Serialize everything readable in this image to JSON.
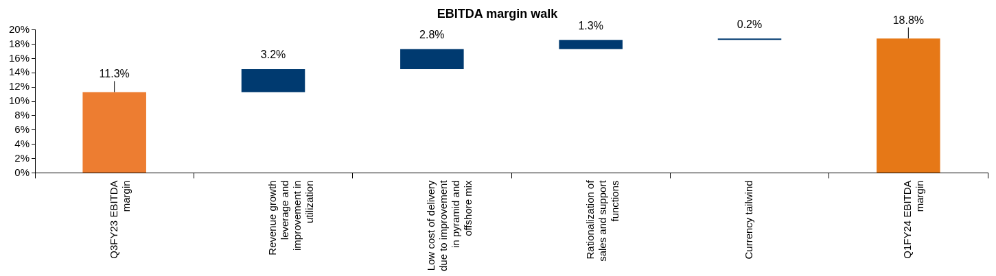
{
  "chart_data": {
    "type": "bar",
    "title": "EBITDA margin walk",
    "categories": [
      "Q3FY23 EBITDA margin",
      "Revenue growth leverage and improvement in utilization",
      "Low cost of delivery due to improvement in pyramid and offshore mix",
      "Rationalization of sales and support functions",
      "Currency tailwind",
      "Q1FY24 EBITDA margin"
    ],
    "values": [
      11.3,
      3.2,
      2.8,
      1.3,
      0.2,
      18.8
    ],
    "base": [
      0,
      11.3,
      14.5,
      17.3,
      18.6,
      0
    ],
    "colors": [
      "#ed7d31",
      "#003a70",
      "#003a70",
      "#003a70",
      "#003a70",
      "#e67817"
    ],
    "value_labels": [
      "11.3%",
      "3.2%",
      "2.8%",
      "1.3%",
      "0.2%",
      "18.8%"
    ],
    "ylim": [
      0,
      20
    ],
    "yticks": [
      {
        "value": 0,
        "label": "0%"
      },
      {
        "value": 2,
        "label": "2%"
      },
      {
        "value": 4,
        "label": "4%"
      },
      {
        "value": 6,
        "label": "6%"
      },
      {
        "value": 8,
        "label": "8%"
      },
      {
        "value": 10,
        "label": "10%"
      },
      {
        "value": 12,
        "label": "12%"
      },
      {
        "value": 14,
        "label": "14%"
      },
      {
        "value": 16,
        "label": "16%"
      },
      {
        "value": 18,
        "label": "18%"
      },
      {
        "value": 20,
        "label": "20%"
      }
    ],
    "grid": false,
    "legend": false
  }
}
